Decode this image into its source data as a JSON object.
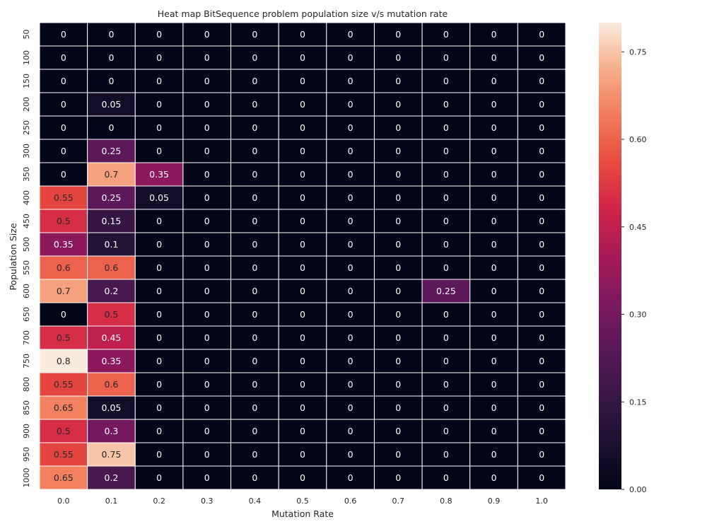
{
  "chart_data": {
    "type": "heatmap",
    "title": "Heat map BitSequence problem population size v/s mutation rate",
    "xlabel": "Mutation Rate",
    "ylabel": "Population Size",
    "x_categories": [
      "0.0",
      "0.1",
      "0.2",
      "0.3",
      "0.4",
      "0.5",
      "0.6",
      "0.7",
      "0.8",
      "0.9",
      "1.0"
    ],
    "y_categories": [
      "50",
      "100",
      "150",
      "200",
      "250",
      "300",
      "350",
      "400",
      "450",
      "500",
      "550",
      "600",
      "650",
      "700",
      "750",
      "800",
      "850",
      "900",
      "950",
      "1000"
    ],
    "values": [
      [
        0,
        0,
        0,
        0,
        0,
        0,
        0,
        0,
        0,
        0,
        0
      ],
      [
        0,
        0,
        0,
        0,
        0,
        0,
        0,
        0,
        0,
        0,
        0
      ],
      [
        0,
        0,
        0,
        0,
        0,
        0,
        0,
        0,
        0,
        0,
        0
      ],
      [
        0,
        0.05,
        0,
        0,
        0,
        0,
        0,
        0,
        0,
        0,
        0
      ],
      [
        0,
        0,
        0,
        0,
        0,
        0,
        0,
        0,
        0,
        0,
        0
      ],
      [
        0,
        0.25,
        0,
        0,
        0,
        0,
        0,
        0,
        0,
        0,
        0
      ],
      [
        0,
        0.7,
        0.35,
        0,
        0,
        0,
        0,
        0,
        0,
        0,
        0
      ],
      [
        0.55,
        0.25,
        0.05,
        0,
        0,
        0,
        0,
        0,
        0,
        0,
        0
      ],
      [
        0.5,
        0.15,
        0,
        0,
        0,
        0,
        0,
        0,
        0,
        0,
        0
      ],
      [
        0.35,
        0.1,
        0,
        0,
        0,
        0,
        0,
        0,
        0,
        0,
        0
      ],
      [
        0.6,
        0.6,
        0,
        0,
        0,
        0,
        0,
        0,
        0,
        0,
        0
      ],
      [
        0.7,
        0.2,
        0,
        0,
        0,
        0,
        0,
        0,
        0.25,
        0,
        0
      ],
      [
        0,
        0.5,
        0,
        0,
        0,
        0,
        0,
        0,
        0,
        0,
        0
      ],
      [
        0.5,
        0.45,
        0,
        0,
        0,
        0,
        0,
        0,
        0,
        0,
        0
      ],
      [
        0.8,
        0.35,
        0,
        0,
        0,
        0,
        0,
        0,
        0,
        0,
        0
      ],
      [
        0.55,
        0.6,
        0,
        0,
        0,
        0,
        0,
        0,
        0,
        0,
        0
      ],
      [
        0.65,
        0.05,
        0,
        0,
        0,
        0,
        0,
        0,
        0,
        0,
        0
      ],
      [
        0.5,
        0.3,
        0,
        0,
        0,
        0,
        0,
        0,
        0,
        0,
        0
      ],
      [
        0.55,
        0.75,
        0,
        0,
        0,
        0,
        0,
        0,
        0,
        0,
        0
      ],
      [
        0.65,
        0.2,
        0,
        0,
        0,
        0,
        0,
        0,
        0,
        0,
        0
      ]
    ],
    "vmin": 0,
    "vmax": 0.8,
    "colormap": "rocket",
    "colorbar_ticks": [
      "0.00",
      "0.15",
      "0.30",
      "0.45",
      "0.60",
      "0.75"
    ],
    "colorbar_tick_values": [
      0,
      0.15,
      0.3,
      0.45,
      0.6,
      0.75
    ],
    "grid": false,
    "annotated": true,
    "cell_separator_color": "#ffffff"
  }
}
